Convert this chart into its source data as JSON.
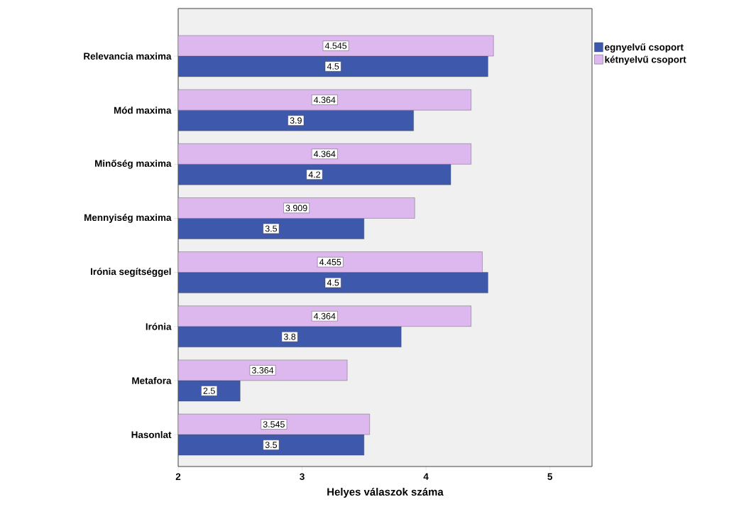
{
  "chart_data": {
    "type": "bar",
    "orientation": "horizontal",
    "xlabel": "Helyes válaszok száma",
    "categories": [
      "Relevancia maxima",
      "Mód maxima",
      "Minőség maxima",
      "Mennyiség maxima",
      "Irónia segítséggel",
      "Irónia",
      "Metafora",
      "Hasonlat"
    ],
    "series": [
      {
        "name": "egnyelvű csoport",
        "color": "#3e58ab",
        "values": [
          4.5,
          3.9,
          4.2,
          3.5,
          4.5,
          3.8,
          2.5,
          3.5
        ]
      },
      {
        "name": "kétnyelvű csoport",
        "color": "#ddb8ef",
        "values": [
          4.545,
          4.364,
          4.364,
          3.909,
          4.455,
          4.364,
          3.364,
          3.545
        ]
      }
    ],
    "xlim": [
      2,
      5.34
    ],
    "xticks": [
      2,
      3,
      4,
      5
    ],
    "data_labels": true,
    "legend": "top right",
    "grid": false
  }
}
